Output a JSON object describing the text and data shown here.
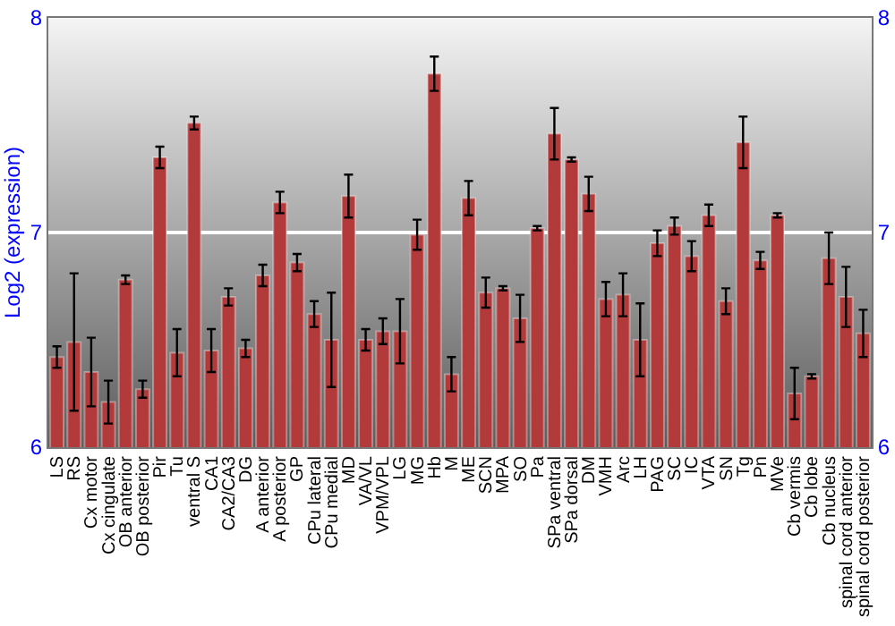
{
  "chart_data": {
    "type": "bar",
    "ylabel": "Log2 (expression)",
    "categories": [
      "LS",
      "RS",
      "Cx motor",
      "Cx cingulate",
      "OB anterior",
      "OB posterior",
      "Pir",
      "Tu",
      "ventral S",
      "CA1",
      "CA2/CA3",
      "DG",
      "A anterior",
      "A posterior",
      "GP",
      "CPu lateral",
      "CPu medial",
      "MD",
      "VA/VL",
      "VPM/VPL",
      "LG",
      "MG",
      "Hb",
      "M",
      "ME",
      "SCN",
      "MPA",
      "SO",
      "Pa",
      "SPa ventral",
      "SPa dorsal",
      "DM",
      "VMH",
      "Arc",
      "LH",
      "PAG",
      "SC",
      "IC",
      "VTA",
      "SN",
      "Tg",
      "Pn",
      "MVe",
      "Cb vermis",
      "Cb lobe",
      "Cb nucleus",
      "spinal cord anterior",
      "spinal cord posterior"
    ],
    "values": [
      6.42,
      6.49,
      6.35,
      6.21,
      6.78,
      6.27,
      7.35,
      6.44,
      7.51,
      6.45,
      6.7,
      6.46,
      6.8,
      7.14,
      6.86,
      6.62,
      6.5,
      7.17,
      6.5,
      6.54,
      6.54,
      6.99,
      7.74,
      6.34,
      7.16,
      6.72,
      6.74,
      6.6,
      7.02,
      7.46,
      7.34,
      7.18,
      6.69,
      6.71,
      6.5,
      6.95,
      7.03,
      6.89,
      7.08,
      6.68,
      7.42,
      6.87,
      7.08,
      6.25,
      6.33,
      6.88,
      6.7,
      6.53
    ],
    "errors": [
      0.05,
      0.32,
      0.16,
      0.1,
      0.02,
      0.04,
      0.05,
      0.11,
      0.03,
      0.1,
      0.04,
      0.04,
      0.05,
      0.05,
      0.04,
      0.06,
      0.22,
      0.1,
      0.05,
      0.06,
      0.15,
      0.07,
      0.08,
      0.08,
      0.08,
      0.07,
      0.01,
      0.11,
      0.01,
      0.12,
      0.01,
      0.08,
      0.08,
      0.1,
      0.17,
      0.06,
      0.04,
      0.07,
      0.05,
      0.06,
      0.12,
      0.04,
      0.01,
      0.12,
      0.01,
      0.12,
      0.14,
      0.11
    ],
    "color": "#b33a3a",
    "ylim": [
      6,
      8
    ],
    "yticks": [
      6,
      7,
      8
    ],
    "y2lim": [
      6,
      8
    ],
    "y2ticks": [
      6,
      7,
      8
    ],
    "grid": "y"
  }
}
